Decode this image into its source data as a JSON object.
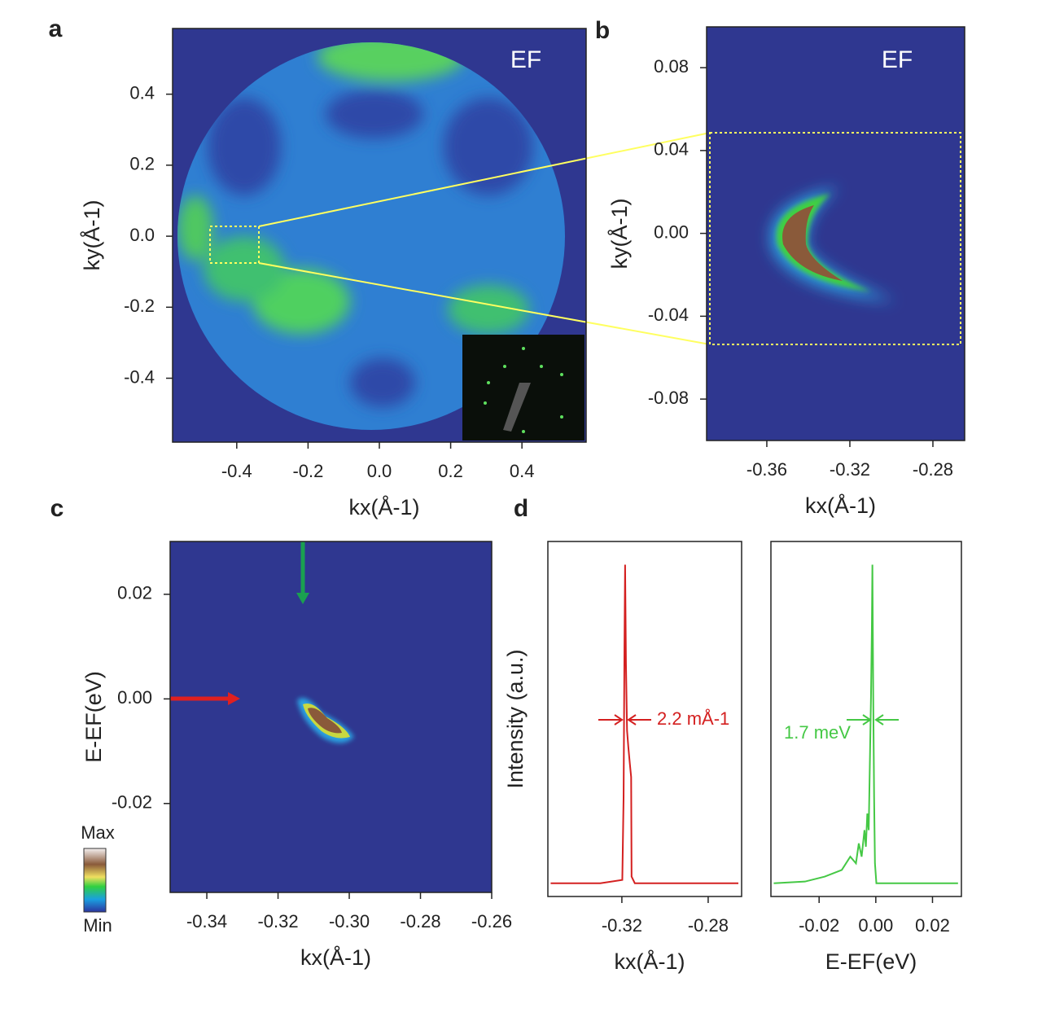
{
  "chart_data": [
    {
      "type": "heatmap",
      "panel": "a",
      "annotation": "EF",
      "xlabel": "kx(Å-1)",
      "ylabel": "ky(Å-1)",
      "xlim": [
        -0.58,
        0.58
      ],
      "ylim": [
        -0.58,
        0.585
      ],
      "xticks": [
        -0.4,
        -0.2,
        {
          "value": 0,
          "label": "0.0"
        },
        0.2,
        0.4
      ],
      "yticks": [
        -0.4,
        -0.2,
        {
          "value": 0,
          "label": "0.0"
        },
        0.2,
        0.4
      ]
    },
    {
      "type": "heatmap",
      "panel": "b",
      "annotation": "EF",
      "xlabel": "kx(Å-1)",
      "ylabel": "ky(Å-1)",
      "xlim": [
        -0.389,
        -0.2647
      ],
      "ylim": [
        -0.1,
        0.0997
      ],
      "xticks": [
        -0.36,
        -0.32,
        -0.28
      ],
      "yticks": [
        -0.08,
        -0.04,
        {
          "value": 0,
          "label": "0.00"
        },
        0.04,
        0.08
      ]
    },
    {
      "type": "heatmap",
      "panel": "c",
      "xlabel": "kx(Å-1)",
      "ylabel": "E-EF(eV)",
      "colorbar_labels": [
        "Max",
        "Min"
      ],
      "xlim": [
        -0.3503,
        -0.26
      ],
      "ylim": [
        -0.037,
        0.0301
      ],
      "xticks": [
        -0.34,
        -0.32,
        {
          "value": -0.3,
          "label": "-0.30"
        },
        -0.28,
        -0.26
      ],
      "yticks": [
        -0.02,
        {
          "value": 0,
          "label": "0.00"
        },
        0.02
      ]
    },
    {
      "type": "line",
      "panel": "d",
      "annotation": "2.2 mÅ-1",
      "xlabel": "kx(Å-1)",
      "ylabel": "Intensity (a.u.)",
      "xlim": [
        -0.3543,
        -0.2645
      ],
      "ylim": [
        0,
        1.07
      ],
      "xticks": [
        -0.32,
        -0.28
      ],
      "x": [
        -0.353,
        -0.33,
        -0.3198,
        -0.3192,
        -0.3188,
        -0.3185,
        -0.3181,
        -0.3176,
        -0.317,
        -0.3163,
        -0.3157,
        -0.3155,
        -0.314,
        -0.266
      ],
      "series": [
        {
          "color": "#d42020",
          "values": [
            0.04,
            0.04,
            0.05,
            0.3,
            0.75,
            1.0,
            0.7,
            0.5,
            0.45,
            0.4,
            0.36,
            0.06,
            0.04,
            0.04
          ]
        }
      ]
    },
    {
      "type": "line",
      "annotation": "1.7 meV",
      "xlabel": "E-EF(eV)",
      "xlim": [
        -0.037,
        0.0302
      ],
      "ylim": [
        0,
        1.07
      ],
      "xticks": [
        -0.02,
        {
          "value": 0,
          "label": "0.00"
        },
        0.02
      ],
      "x": [
        -0.036,
        -0.025,
        -0.018,
        -0.012,
        -0.009,
        -0.007,
        -0.006,
        -0.005,
        -0.004,
        -0.0035,
        -0.003,
        -0.0025,
        -0.002,
        -0.0017,
        -0.0014,
        -0.0012,
        -0.0009,
        -0.0006,
        -0.0003,
        0.0002,
        0.029
      ],
      "series": [
        {
          "color": "#45c845",
          "values": [
            0.04,
            0.045,
            0.06,
            0.08,
            0.12,
            0.1,
            0.16,
            0.12,
            0.2,
            0.15,
            0.25,
            0.2,
            0.45,
            0.6,
            0.8,
            1.0,
            0.6,
            0.3,
            0.1,
            0.04,
            0.04
          ]
        }
      ]
    }
  ]
}
